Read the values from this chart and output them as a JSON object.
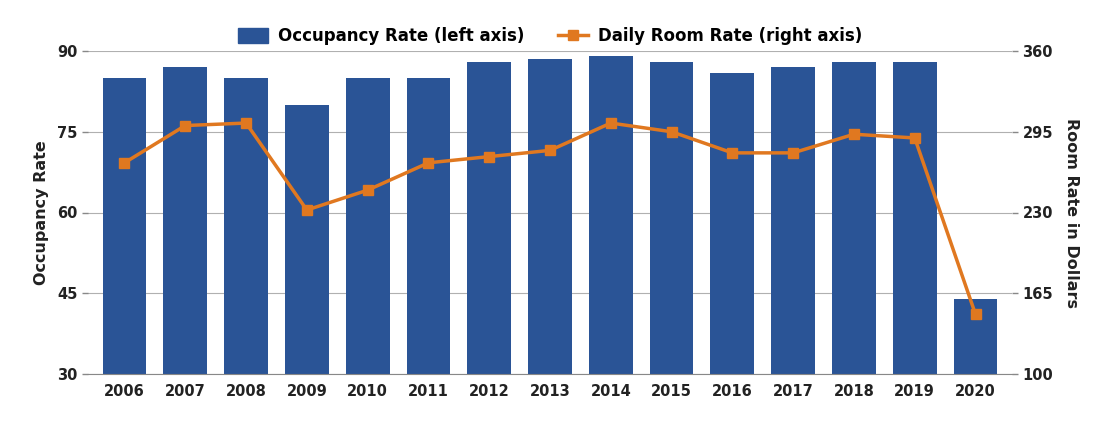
{
  "years": [
    2006,
    2007,
    2008,
    2009,
    2010,
    2011,
    2012,
    2013,
    2014,
    2015,
    2016,
    2017,
    2018,
    2019,
    2020
  ],
  "occupancy": [
    85.0,
    87.0,
    85.0,
    80.0,
    85.0,
    85.0,
    88.0,
    88.5,
    89.0,
    88.0,
    86.0,
    87.0,
    88.0,
    88.0,
    44.0
  ],
  "room_rate": [
    270,
    300,
    302,
    232,
    248,
    270,
    275,
    280,
    302,
    295,
    278,
    278,
    293,
    290,
    148
  ],
  "bar_color": "#2a5496",
  "line_color": "#e07820",
  "left_ylim": [
    30,
    90
  ],
  "right_ylim": [
    100,
    360
  ],
  "left_yticks": [
    30,
    45,
    60,
    75,
    90
  ],
  "right_yticks": [
    100,
    165,
    230,
    295,
    360
  ],
  "bar_bottom": 30,
  "ylabel_left": "Occupancy Rate",
  "ylabel_right": "Room Rate in Dollars",
  "legend_bar": "Occupancy Rate (left axis)",
  "legend_line": "Daily Room Rate (right axis)",
  "background_color": "#ffffff",
  "grid_color": "#b0b0b0"
}
